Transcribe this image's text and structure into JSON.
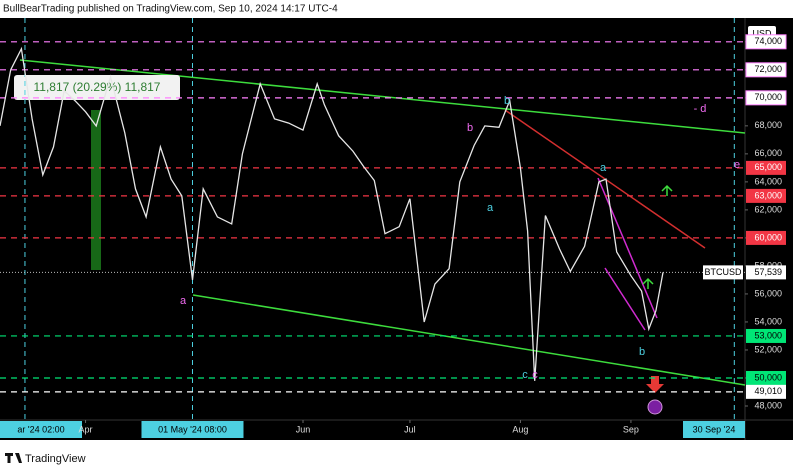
{
  "chart_data": {
    "type": "line",
    "title": "BullBearTrading published on TradingView.com, Sep 10, 2024 14:17 UTC-4",
    "footer": "TradingView",
    "currency": "USD",
    "symbol": "BTCUSD",
    "measure_label": "11,817 (20.29%) 11,817",
    "last_price": {
      "value": 57539,
      "label": "57,539"
    },
    "series": [
      {
        "name": "BTCUSD",
        "color": "#e6e6e6",
        "x": [
          "2024-03-08",
          "2024-03-11",
          "2024-03-14",
          "2024-03-17",
          "2024-03-20",
          "2024-03-23",
          "2024-03-26",
          "2024-03-29",
          "2024-04-01",
          "2024-04-04",
          "2024-04-08",
          "2024-04-12",
          "2024-04-15",
          "2024-04-18",
          "2024-04-22",
          "2024-04-25",
          "2024-04-28",
          "2024-05-01",
          "2024-05-04",
          "2024-05-08",
          "2024-05-12",
          "2024-05-15",
          "2024-05-20",
          "2024-05-24",
          "2024-05-28",
          "2024-06-01",
          "2024-06-05",
          "2024-06-07",
          "2024-06-11",
          "2024-06-15",
          "2024-06-18",
          "2024-06-21",
          "2024-06-24",
          "2024-06-28",
          "2024-07-01",
          "2024-07-05",
          "2024-07-08",
          "2024-07-12",
          "2024-07-15",
          "2024-07-19",
          "2024-07-22",
          "2024-07-26",
          "2024-07-29",
          "2024-08-01",
          "2024-08-03",
          "2024-08-05",
          "2024-08-08",
          "2024-08-12",
          "2024-08-15",
          "2024-08-19",
          "2024-08-23",
          "2024-08-25",
          "2024-08-28",
          "2024-09-01",
          "2024-09-04",
          "2024-09-06",
          "2024-09-08",
          "2024-09-10"
        ],
        "values": [
          68000,
          72000,
          73500,
          68500,
          64500,
          66500,
          70500,
          69800,
          69000,
          68000,
          71500,
          67500,
          63500,
          61500,
          66500,
          64200,
          63000,
          57000,
          63500,
          61500,
          61000,
          66000,
          71000,
          68500,
          68200,
          67700,
          71000,
          69500,
          67300,
          66200,
          65100,
          64100,
          60300,
          60800,
          62800,
          54000,
          56700,
          57800,
          64000,
          66600,
          68000,
          67900,
          69800,
          65000,
          60500,
          49800,
          61600,
          59200,
          57600,
          59400,
          64000,
          64200,
          59000,
          57300,
          56200,
          53500,
          54800,
          57539
        ]
      }
    ],
    "xlim": [
      "2024-03-08",
      "2024-10-03"
    ],
    "xticks": [
      {
        "value": "2024-03-15",
        "label": "ar '24   02:00",
        "highlight": true
      },
      {
        "value": "2024-04-01",
        "label": "Apr"
      },
      {
        "value": "2024-05-01",
        "label": "01 May '24   08:00",
        "highlight": true
      },
      {
        "value": "2024-06-01",
        "label": "Jun"
      },
      {
        "value": "2024-07-01",
        "label": "Jul"
      },
      {
        "value": "2024-08-01",
        "label": "Aug"
      },
      {
        "value": "2024-09-01",
        "label": "Sep"
      },
      {
        "value": "2024-09-30",
        "label": "30 Sep '24",
        "highlight": true
      }
    ],
    "ylim": [
      47000,
      75700
    ],
    "yticks": [
      {
        "value": 74000,
        "label": "74,000"
      },
      {
        "value": 72000,
        "label": "72,000"
      },
      {
        "value": 70000,
        "label": "70,000"
      },
      {
        "value": 68000,
        "label": "68,000"
      },
      {
        "value": 66000,
        "label": "66,000"
      },
      {
        "value": 64000,
        "label": "64,000"
      },
      {
        "value": 62000,
        "label": "62,000"
      },
      {
        "value": 60000,
        "label": "60,000"
      },
      {
        "value": 58000,
        "label": "58,000"
      },
      {
        "value": 56000,
        "label": "56,000"
      },
      {
        "value": 54000,
        "label": "54,000"
      },
      {
        "value": 52000,
        "label": "52,000"
      },
      {
        "value": 50000,
        "label": "50,000"
      },
      {
        "value": 48000,
        "label": "48,000"
      }
    ],
    "levels": [
      {
        "value": 74000,
        "color": "#ff80ff"
      },
      {
        "value": 72000,
        "color": "#ff80ff"
      },
      {
        "value": 70000,
        "color": "#ff80ff"
      },
      {
        "value": 65000,
        "label": "65,000",
        "color": "#f23645"
      },
      {
        "value": 63000,
        "label": "63,000",
        "color": "#f23645"
      },
      {
        "value": 60000,
        "color": "#f23645"
      },
      {
        "value": 53000,
        "label": "53,000",
        "color": "#00e676"
      },
      {
        "value": 50000,
        "color": "#00e676"
      },
      {
        "value": 49010,
        "label": "49,010",
        "color": "#ffffff"
      }
    ],
    "annotations": [
      "a",
      "b",
      "b",
      "a",
      "a",
      "b",
      "c",
      "c",
      "- d",
      "e"
    ]
  }
}
